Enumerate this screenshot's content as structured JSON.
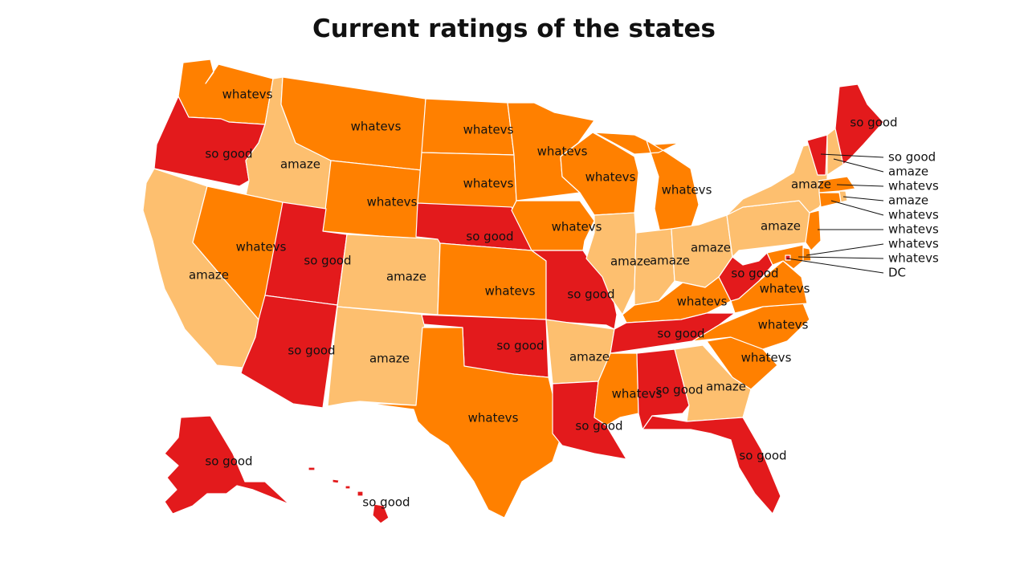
{
  "title": "Current ratings of the states",
  "colors": {
    "so good": "#e31a1c",
    "whatevs": "#ff8000",
    "amaze": "#fdbf6f"
  },
  "states": [
    {
      "id": "WA",
      "rating": "whatevs"
    },
    {
      "id": "OR",
      "rating": "so good"
    },
    {
      "id": "CA",
      "rating": "amaze"
    },
    {
      "id": "ID",
      "rating": "amaze"
    },
    {
      "id": "NV",
      "rating": "whatevs"
    },
    {
      "id": "MT",
      "rating": "whatevs"
    },
    {
      "id": "WY",
      "rating": "whatevs"
    },
    {
      "id": "UT",
      "rating": "so good"
    },
    {
      "id": "AZ",
      "rating": "so good"
    },
    {
      "id": "CO",
      "rating": "amaze"
    },
    {
      "id": "NM",
      "rating": "amaze"
    },
    {
      "id": "ND",
      "rating": "whatevs"
    },
    {
      "id": "SD",
      "rating": "whatevs"
    },
    {
      "id": "NE",
      "rating": "so good"
    },
    {
      "id": "KS",
      "rating": "whatevs"
    },
    {
      "id": "OK",
      "rating": "so good"
    },
    {
      "id": "TX",
      "rating": "whatevs"
    },
    {
      "id": "MN",
      "rating": "whatevs"
    },
    {
      "id": "IA",
      "rating": "whatevs"
    },
    {
      "id": "MO",
      "rating": "so good"
    },
    {
      "id": "AR",
      "rating": "amaze"
    },
    {
      "id": "LA",
      "rating": "so good"
    },
    {
      "id": "WI",
      "rating": "whatevs"
    },
    {
      "id": "IL",
      "rating": "amaze"
    },
    {
      "id": "MI",
      "rating": "whatevs"
    },
    {
      "id": "IN",
      "rating": "amaze"
    },
    {
      "id": "OH",
      "rating": "amaze"
    },
    {
      "id": "KY",
      "rating": "whatevs"
    },
    {
      "id": "TN",
      "rating": "so good"
    },
    {
      "id": "MS",
      "rating": "whatevs"
    },
    {
      "id": "AL",
      "rating": "so good"
    },
    {
      "id": "GA",
      "rating": "amaze"
    },
    {
      "id": "FL",
      "rating": "so good"
    },
    {
      "id": "SC",
      "rating": "whatevs"
    },
    {
      "id": "NC",
      "rating": "whatevs"
    },
    {
      "id": "VA",
      "rating": "whatevs"
    },
    {
      "id": "WV",
      "rating": "so good"
    },
    {
      "id": "PA",
      "rating": "amaze"
    },
    {
      "id": "NY",
      "rating": "amaze"
    },
    {
      "id": "VT",
      "rating": "so good"
    },
    {
      "id": "NH",
      "rating": "amaze"
    },
    {
      "id": "ME",
      "rating": "so good"
    },
    {
      "id": "MA",
      "rating": "whatevs"
    },
    {
      "id": "RI",
      "rating": "amaze"
    },
    {
      "id": "CT",
      "rating": "whatevs"
    },
    {
      "id": "NJ",
      "rating": "whatevs"
    },
    {
      "id": "DE",
      "rating": "whatevs"
    },
    {
      "id": "MD",
      "rating": "whatevs"
    },
    {
      "id": "DC",
      "rating": "so good"
    },
    {
      "id": "AK",
      "rating": "so good"
    },
    {
      "id": "HI",
      "rating": "so good"
    }
  ],
  "callouts": [
    {
      "text": "so good"
    },
    {
      "text": "amaze"
    },
    {
      "text": "whatevs"
    },
    {
      "text": "amaze"
    },
    {
      "text": "whatevs"
    },
    {
      "text": "whatevs"
    },
    {
      "text": "whatevs"
    },
    {
      "text": "whatevs"
    },
    {
      "text": "DC"
    }
  ]
}
